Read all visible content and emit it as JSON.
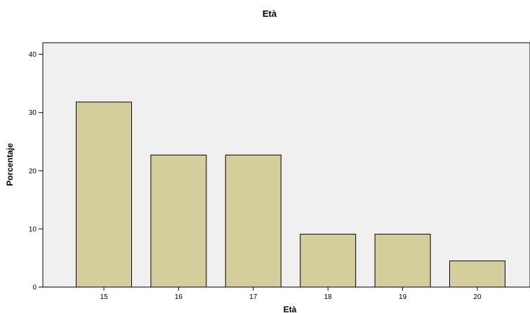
{
  "chart_data": {
    "type": "bar",
    "title": "Età",
    "xlabel": "Età",
    "ylabel": "Porcentaje",
    "categories": [
      "15",
      "16",
      "17",
      "18",
      "19",
      "20"
    ],
    "values": [
      31.8,
      22.7,
      22.7,
      9.1,
      9.1,
      4.5
    ],
    "ylim": [
      0,
      42
    ],
    "yticks": [
      "0",
      "10",
      "20",
      "30",
      "40"
    ],
    "grid": false,
    "legend": "none",
    "colors": {
      "bar_fill": "#d3ce9b",
      "bar_stroke": "#000000",
      "plot_background": "#f0f0f0",
      "page_background": "#ffffff"
    }
  }
}
